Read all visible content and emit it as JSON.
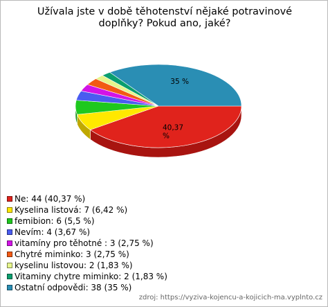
{
  "chart_data": {
    "type": "pie",
    "title": "Užívala jste v době těhotenství nějaké potravinové doplňky? Pokud ano, jaké?",
    "slices": [
      {
        "label": "Ne",
        "count": 44,
        "percent": "40,37 %",
        "value": 40.37,
        "color": "#e0231c",
        "side": "#a81410",
        "legend": "Ne: 44 (40,37 %)",
        "data_label": "40,37\n%"
      },
      {
        "label": "Kyselina listová",
        "count": 7,
        "percent": "6,42 %",
        "value": 6.42,
        "color": "#ffe800",
        "side": "#bfa800",
        "legend": "Kyselina listová: 7 (6,42 %)"
      },
      {
        "label": "femibion",
        "count": 6,
        "percent": "5,5 %",
        "value": 5.5,
        "color": "#1ec81e",
        "side": "#129012",
        "legend": "femibion: 6 (5,5 %)"
      },
      {
        "label": "Nevím",
        "count": 4,
        "percent": "3,67 %",
        "value": 3.67,
        "color": "#4a5cf0",
        "side": "#2c3cb0",
        "legend": "Nevím: 4 (3,67 %)"
      },
      {
        "label": "vitamíny pro těhotné",
        "count": 3,
        "percent": "2,75 %",
        "value": 2.75,
        "color": "#d214e6",
        "side": "#960ca6",
        "legend": "vitamíny pro těhotné : 3 (2,75 %)"
      },
      {
        "label": "Chytré miminko",
        "count": 3,
        "percent": "2,75 %",
        "value": 2.75,
        "color": "#f25a14",
        "side": "#b03c0a",
        "legend": "Chytré miminko: 3 (2,75 %)"
      },
      {
        "label": "kyselinu listovou",
        "count": 2,
        "percent": "1,83 %",
        "value": 1.83,
        "color": "#e6f58c",
        "side": "#aab45c",
        "legend": "kyselinu listovou: 2 (1,83 %)"
      },
      {
        "label": "Vitaminy chytre miminko",
        "count": 2,
        "percent": "1,83 %",
        "value": 1.83,
        "color": "#0a9e6e",
        "side": "#06704e",
        "legend": "Vitaminy chytre miminko: 2 (1,83 %)"
      },
      {
        "label": "Ostatní odpovědi",
        "count": 38,
        "percent": "35 %",
        "value": 35.0,
        "color": "#2a8eb4",
        "side": "#1a6480",
        "legend": "Ostatní odpovědi: 38 (35 %)",
        "data_label": "35 %"
      }
    ]
  },
  "source_text": "zdroj:  https://vyziva-kojencu-a-kojicich-ma.vyplnto.cz"
}
